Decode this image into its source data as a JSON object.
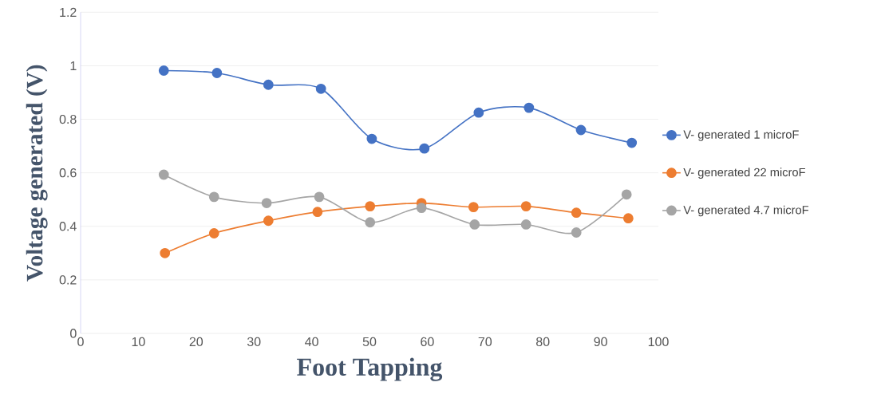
{
  "chart_data": {
    "type": "line",
    "xlabel": "Foot Tapping",
    "ylabel": "Voltage generated (V)",
    "xlim": [
      0,
      100
    ],
    "xticks": [
      0,
      10,
      20,
      30,
      40,
      50,
      60,
      70,
      80,
      90,
      100
    ],
    "ylim": [
      0,
      1.2
    ],
    "yticks": [
      0,
      0.2,
      0.4,
      0.6,
      0.8,
      1,
      1.2
    ],
    "grid": "y",
    "legend": "right",
    "marker": "circle",
    "line_style": "solid",
    "series": [
      {
        "name": "V- generated 1 microF",
        "color": "#4472c4",
        "x": [
          14.4,
          23.6,
          32.5,
          41.6,
          50.4,
          59.5,
          68.9,
          77.6,
          86.6,
          95.4
        ],
        "values": [
          0.982,
          0.973,
          0.929,
          0.914,
          0.727,
          0.691,
          0.825,
          0.843,
          0.76,
          0.712
        ]
      },
      {
        "name": "V- generated 22 microF",
        "color": "#ed7d31",
        "x": [
          14.6,
          23.1,
          32.5,
          41.0,
          50.1,
          59.0,
          68.0,
          77.1,
          85.8,
          94.8
        ],
        "values": [
          0.3,
          0.374,
          0.421,
          0.454,
          0.475,
          0.487,
          0.472,
          0.475,
          0.451,
          0.43
        ]
      },
      {
        "name": "V- generated 4.7 microF",
        "color": "#a5a5a5",
        "x": [
          14.4,
          23.1,
          32.2,
          41.3,
          50.1,
          59.0,
          68.2,
          77.1,
          85.8,
          94.5
        ],
        "values": [
          0.593,
          0.51,
          0.487,
          0.51,
          0.415,
          0.469,
          0.407,
          0.407,
          0.377,
          0.519
        ]
      }
    ]
  }
}
